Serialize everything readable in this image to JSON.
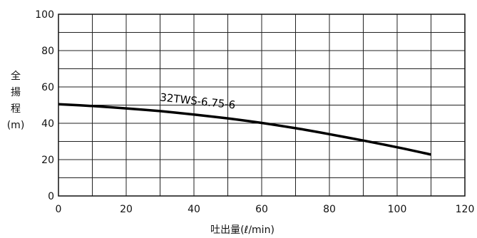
{
  "chart_data": {
    "type": "line",
    "xlabel": "吐出量(ℓ/min)",
    "ylabel": [
      "全",
      "揚",
      "程",
      "(m)"
    ],
    "xlim": [
      0,
      120
    ],
    "ylim": [
      0,
      100
    ],
    "xticks": [
      0,
      20,
      40,
      60,
      80,
      100,
      120
    ],
    "yticks": [
      0,
      20,
      40,
      60,
      80,
      100
    ],
    "grid": true,
    "series": [
      {
        "name": "32TWS-6.75-6",
        "x": [
          0,
          10,
          20,
          30,
          40,
          50,
          60,
          70,
          80,
          90,
          100,
          110
        ],
        "y": [
          50.5,
          49.5,
          48.2,
          46.7,
          44.8,
          42.7,
          40.2,
          37.3,
          34.0,
          30.5,
          26.8,
          22.8
        ]
      }
    ]
  }
}
